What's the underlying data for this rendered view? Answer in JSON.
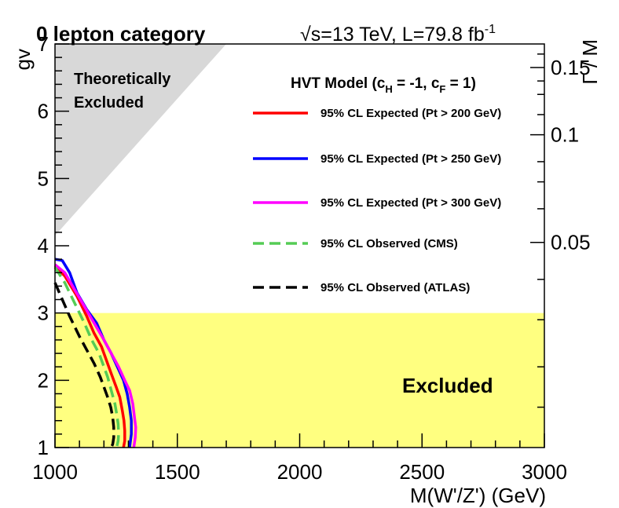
{
  "chart_data": {
    "type": "line",
    "title": "0 lepton category",
    "energy_label": "√s=13 TeV, L=79.8 fb",
    "energy_sup": "-1",
    "xlabel": "M(W'/Z') (GeV)",
    "ylabel": "gv",
    "y2label": "Γ / M",
    "xlim": [
      1000,
      3000
    ],
    "ylim": [
      1,
      7
    ],
    "x_ticks": [
      1000,
      1500,
      2000,
      2500,
      3000
    ],
    "y_ticks": [
      1,
      2,
      3,
      4,
      5,
      6,
      7
    ],
    "y2_ticks": [
      {
        "label": "0.05",
        "gv": 4.05
      },
      {
        "label": "0.1",
        "gv": 5.65
      },
      {
        "label": "0.15",
        "gv": 6.65
      }
    ],
    "legend_title": "HVT Model (c",
    "legend_title_sub": "H",
    "legend_title_mid": " = -1, c",
    "legend_title_sub2": "F",
    "legend_title_end": " = 1)",
    "theory_region": {
      "label_line1": "Theoretically",
      "label_line2": "Excluded",
      "vertices": [
        [
          1000,
          4.15
        ],
        [
          1000,
          7
        ],
        [
          1700,
          7
        ]
      ],
      "color": "#d8d8d8"
    },
    "excluded_region": {
      "label": "Excluded",
      "y_max": 3.0,
      "color": "#ffff80"
    },
    "series": [
      {
        "name": "95% CL Expected (Pt > 200 GeV)",
        "color": "#ff0000",
        "dash": "solid",
        "x": [
          1000,
          1040,
          1090,
          1130,
          1160,
          1190,
          1210,
          1230,
          1250,
          1265,
          1275,
          1282,
          1285,
          1285,
          1280
        ],
        "y": [
          3.7,
          3.55,
          3.25,
          2.95,
          2.7,
          2.5,
          2.3,
          2.1,
          1.9,
          1.75,
          1.55,
          1.4,
          1.25,
          1.1,
          1.0
        ]
      },
      {
        "name": "95% CL Expected (Pt > 250 GeV)",
        "color": "#0000ff",
        "dash": "solid",
        "x": [
          1000,
          1030,
          1060,
          1090,
          1130,
          1170,
          1200,
          1230,
          1255,
          1280,
          1295,
          1305,
          1312,
          1312,
          1305
        ],
        "y": [
          3.8,
          3.78,
          3.6,
          3.3,
          3.05,
          2.85,
          2.6,
          2.4,
          2.2,
          2.0,
          1.8,
          1.6,
          1.4,
          1.2,
          1.0
        ]
      },
      {
        "name": "95% CL Expected (Pt > 300 GeV)",
        "color": "#ff00ff",
        "dash": "solid",
        "x": [
          1000,
          1040,
          1080,
          1120,
          1160,
          1200,
          1230,
          1260,
          1285,
          1305,
          1318,
          1325,
          1330,
          1328,
          1322
        ],
        "y": [
          3.72,
          3.6,
          3.35,
          3.1,
          2.85,
          2.6,
          2.4,
          2.2,
          2.0,
          1.85,
          1.65,
          1.45,
          1.3,
          1.15,
          1.0
        ]
      },
      {
        "name": "95% CL Observed (CMS)",
        "color": "#55cc55",
        "dash": "long",
        "x": [
          1000,
          1040,
          1080,
          1120,
          1150,
          1180,
          1200,
          1215,
          1230,
          1245,
          1252,
          1258,
          1260,
          1258,
          1252
        ],
        "y": [
          3.68,
          3.45,
          3.15,
          2.85,
          2.6,
          2.4,
          2.2,
          2.05,
          1.85,
          1.65,
          1.5,
          1.35,
          1.2,
          1.1,
          1.0
        ]
      },
      {
        "name": "95% CL Observed (ATLAS)",
        "color": "#000000",
        "dash": "long",
        "x": [
          1000,
          1030,
          1060,
          1100,
          1130,
          1160,
          1185,
          1200,
          1215,
          1228,
          1236,
          1240,
          1240,
          1236,
          1230
        ],
        "y": [
          3.45,
          3.2,
          2.95,
          2.65,
          2.45,
          2.25,
          2.05,
          1.9,
          1.75,
          1.6,
          1.45,
          1.3,
          1.15,
          1.05,
          1.0
        ]
      }
    ]
  }
}
